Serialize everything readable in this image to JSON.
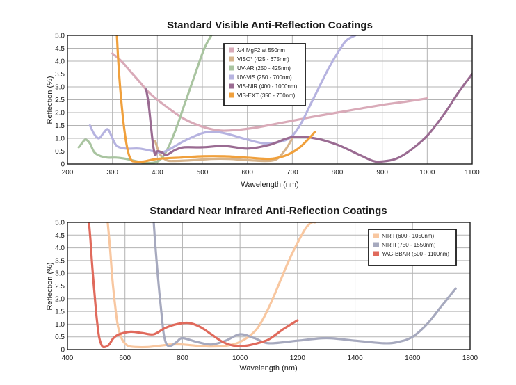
{
  "chart_data": [
    {
      "type": "line",
      "title": "Standard Visible Anti-Reflection Coatings",
      "xlabel": "Wavelength (nm)",
      "ylabel": "Reflection (%)",
      "xlim": [
        200,
        1100
      ],
      "ylim": [
        0,
        5.0
      ],
      "xticks": [
        200,
        300,
        400,
        500,
        600,
        700,
        800,
        900,
        1000,
        1100
      ],
      "yticks": [
        "0",
        "0.5",
        "1.0",
        "1.5",
        "2.0",
        "2.5",
        "3.0",
        "3.5",
        "4.0",
        "4.5",
        "5.0"
      ],
      "grid": true,
      "legend_position": "top-center",
      "series": [
        {
          "name": "λ/4 MgF2 at 550nm",
          "color": "#d9aab8",
          "x": [
            300,
            320,
            340,
            360,
            380,
            400,
            430,
            460,
            500,
            540,
            580,
            620,
            660,
            700,
            750,
            800,
            850,
            900,
            950,
            1000
          ],
          "y": [
            4.3,
            4.0,
            3.6,
            3.2,
            2.8,
            2.5,
            2.1,
            1.75,
            1.45,
            1.3,
            1.33,
            1.42,
            1.55,
            1.68,
            1.85,
            2.0,
            2.15,
            2.3,
            2.42,
            2.55
          ]
        },
        {
          "name": "VISO° (425 - 675nm)",
          "color": "#d6b48c",
          "x": [
            395,
            405,
            420,
            440,
            480,
            520,
            560,
            600,
            640,
            660,
            670,
            680,
            690,
            700
          ],
          "y": [
            0.9,
            0.4,
            0.15,
            0.12,
            0.15,
            0.2,
            0.2,
            0.15,
            0.12,
            0.15,
            0.25,
            0.45,
            0.7,
            1.0
          ]
        },
        {
          "name": "UV-AR (250 - 425nm)",
          "color": "#a9c4a0",
          "x": [
            225,
            232,
            240,
            250,
            260,
            275,
            290,
            310,
            330,
            350,
            370,
            390,
            405,
            420,
            440,
            460,
            480,
            500,
            510,
            520
          ],
          "y": [
            0.65,
            0.8,
            0.95,
            0.8,
            0.45,
            0.3,
            0.25,
            0.25,
            0.2,
            0.12,
            0.05,
            0.05,
            0.15,
            0.5,
            1.3,
            2.3,
            3.3,
            4.3,
            4.7,
            5.0
          ]
        },
        {
          "name": "UV-VIS (250 - 700nm)",
          "color": "#b6b3e0",
          "x": [
            250,
            260,
            270,
            280,
            290,
            300,
            310,
            330,
            360,
            390,
            410,
            430,
            460,
            500,
            530,
            560,
            600,
            640,
            680,
            700,
            720,
            740,
            760,
            780,
            800,
            820,
            840
          ],
          "y": [
            1.5,
            1.15,
            1.0,
            1.2,
            1.35,
            1.0,
            0.7,
            0.6,
            0.6,
            0.5,
            0.45,
            0.6,
            0.9,
            1.2,
            1.25,
            1.15,
            0.95,
            0.8,
            0.9,
            1.1,
            1.6,
            2.3,
            3.0,
            3.7,
            4.3,
            4.8,
            5.0
          ]
        },
        {
          "name": "VIS-NIR (400 - 1000nm)",
          "color": "#9a6b92",
          "x": [
            375,
            380,
            385,
            390,
            395,
            400,
            410,
            420,
            440,
            460,
            500,
            550,
            600,
            650,
            700,
            750,
            800,
            850,
            880,
            900,
            930,
            960,
            1000,
            1040,
            1070,
            1100
          ],
          "y": [
            2.9,
            2.4,
            1.6,
            0.8,
            0.35,
            0.5,
            0.45,
            0.35,
            0.55,
            0.65,
            0.65,
            0.7,
            0.6,
            0.75,
            1.05,
            1.0,
            0.75,
            0.35,
            0.12,
            0.1,
            0.2,
            0.5,
            1.1,
            2.0,
            2.8,
            3.5
          ]
        },
        {
          "name": "VIS-EXT (350 - 700nm)",
          "color": "#f0a03c",
          "x": [
            310,
            313,
            318,
            324,
            330,
            336,
            342,
            350,
            370,
            400,
            450,
            500,
            550,
            600,
            650,
            680,
            700,
            720,
            740,
            750
          ],
          "y": [
            5.0,
            4.0,
            2.8,
            1.7,
            0.9,
            0.4,
            0.15,
            0.1,
            0.1,
            0.2,
            0.25,
            0.3,
            0.3,
            0.25,
            0.2,
            0.3,
            0.45,
            0.7,
            1.05,
            1.25
          ]
        }
      ]
    },
    {
      "type": "line",
      "title": "Standard Near Infrared Anti-Reflection Coatings",
      "xlabel": "Wavelength (nm)",
      "ylabel": "Reflection (%)",
      "xlim": [
        400,
        1800
      ],
      "ylim": [
        0,
        5.0
      ],
      "xticks": [
        400,
        600,
        800,
        1000,
        1200,
        1400,
        1600,
        1800
      ],
      "yticks": [
        "0",
        "0.5",
        "1.0",
        "1.5",
        "2.0",
        "2.5",
        "3.0",
        "3.5",
        "4.0",
        "4.5",
        "5.0"
      ],
      "grid": true,
      "legend_position": "top-right",
      "series": [
        {
          "name": "NIR I (600 - 1050nm)",
          "color": "#f8c7a0",
          "x": [
            540,
            548,
            556,
            566,
            576,
            590,
            610,
            640,
            680,
            720,
            760,
            800,
            850,
            900,
            950,
            1000,
            1050,
            1080,
            1110,
            1140,
            1170,
            1200,
            1230,
            1250,
            1260
          ],
          "y": [
            5.0,
            4.0,
            2.8,
            1.7,
            0.9,
            0.4,
            0.15,
            0.1,
            0.1,
            0.15,
            0.2,
            0.2,
            0.15,
            0.12,
            0.15,
            0.3,
            0.7,
            1.2,
            1.9,
            2.7,
            3.5,
            4.2,
            4.8,
            5.0,
            5.0
          ]
        },
        {
          "name": "NIR II (750 - 1550nm)",
          "color": "#a6a9be",
          "x": [
            700,
            705,
            712,
            720,
            728,
            735,
            745,
            760,
            780,
            800,
            850,
            900,
            950,
            1000,
            1050,
            1100,
            1200,
            1300,
            1400,
            1500,
            1550,
            1600,
            1650,
            1700,
            1750
          ],
          "y": [
            5.0,
            4.2,
            3.2,
            2.2,
            1.3,
            0.6,
            0.2,
            0.15,
            0.3,
            0.45,
            0.3,
            0.2,
            0.35,
            0.6,
            0.45,
            0.25,
            0.35,
            0.45,
            0.35,
            0.25,
            0.3,
            0.5,
            1.0,
            1.7,
            2.4
          ]
        },
        {
          "name": "YAG-BBAR (500 - 1100nm)",
          "color": "#e06a5c",
          "x": [
            475,
            480,
            486,
            494,
            502,
            510,
            520,
            530,
            545,
            560,
            580,
            620,
            660,
            700,
            740,
            780,
            820,
            860,
            900,
            940,
            980,
            1020,
            1060,
            1100,
            1150,
            1200
          ],
          "y": [
            5.0,
            4.3,
            3.3,
            2.2,
            1.2,
            0.5,
            0.15,
            0.1,
            0.2,
            0.45,
            0.6,
            0.7,
            0.65,
            0.6,
            0.85,
            1.0,
            1.05,
            0.9,
            0.6,
            0.3,
            0.15,
            0.15,
            0.25,
            0.4,
            0.8,
            1.15
          ]
        }
      ]
    }
  ]
}
